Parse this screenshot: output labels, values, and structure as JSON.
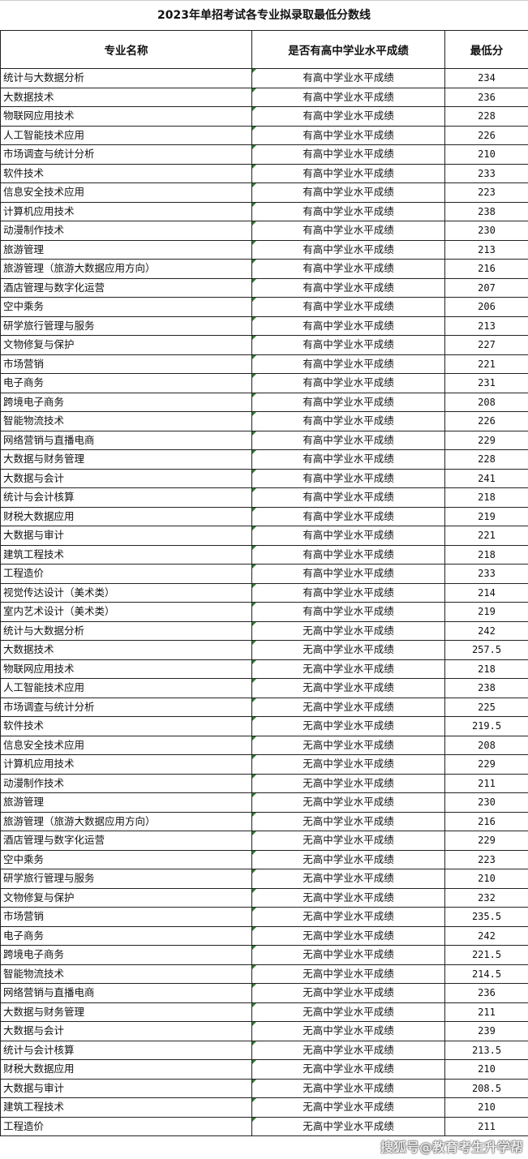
{
  "title": "2023年单招考试各专业拟录取最低分数线",
  "headers": [
    "专业名称",
    "是否有高中学业水平成绩",
    "最低分"
  ],
  "watermark": "搜狐号@教育考生升学帮",
  "rows": [
    [
      "统计与大数据分析",
      "有高中学业水平成绩",
      "234"
    ],
    [
      "大数据技术",
      "有高中学业水平成绩",
      "236"
    ],
    [
      "物联网应用技术",
      "有高中学业水平成绩",
      "228"
    ],
    [
      "人工智能技术应用",
      "有高中学业水平成绩",
      "226"
    ],
    [
      "市场调查与统计分析",
      "有高中学业水平成绩",
      "210"
    ],
    [
      "软件技术",
      "有高中学业水平成绩",
      "233"
    ],
    [
      "信息安全技术应用",
      "有高中学业水平成绩",
      "223"
    ],
    [
      "计算机应用技术",
      "有高中学业水平成绩",
      "238"
    ],
    [
      "动漫制作技术",
      "有高中学业水平成绩",
      "230"
    ],
    [
      "旅游管理",
      "有高中学业水平成绩",
      "213"
    ],
    [
      "旅游管理（旅游大数据应用方向）",
      "有高中学业水平成绩",
      "216"
    ],
    [
      "酒店管理与数字化运营",
      "有高中学业水平成绩",
      "207"
    ],
    [
      "空中乘务",
      "有高中学业水平成绩",
      "206"
    ],
    [
      "研学旅行管理与服务",
      "有高中学业水平成绩",
      "213"
    ],
    [
      "文物修复与保护",
      "有高中学业水平成绩",
      "227"
    ],
    [
      "市场营销",
      "有高中学业水平成绩",
      "221"
    ],
    [
      "电子商务",
      "有高中学业水平成绩",
      "231"
    ],
    [
      "跨境电子商务",
      "有高中学业水平成绩",
      "208"
    ],
    [
      "智能物流技术",
      "有高中学业水平成绩",
      "226"
    ],
    [
      "网络营销与直播电商",
      "有高中学业水平成绩",
      "229"
    ],
    [
      "大数据与财务管理",
      "有高中学业水平成绩",
      "228"
    ],
    [
      "大数据与会计",
      "有高中学业水平成绩",
      "241"
    ],
    [
      "统计与会计核算",
      "有高中学业水平成绩",
      "218"
    ],
    [
      "财税大数据应用",
      "有高中学业水平成绩",
      "219"
    ],
    [
      "大数据与审计",
      "有高中学业水平成绩",
      "221"
    ],
    [
      "建筑工程技术",
      "有高中学业水平成绩",
      "218"
    ],
    [
      "工程造价",
      "有高中学业水平成绩",
      "233"
    ],
    [
      "视觉传达设计（美术类）",
      "有高中学业水平成绩",
      "214"
    ],
    [
      "室内艺术设计（美术类）",
      "有高中学业水平成绩",
      "219"
    ],
    [
      "统计与大数据分析",
      "无高中学业水平成绩",
      "242"
    ],
    [
      "大数据技术",
      "无高中学业水平成绩",
      "257.5"
    ],
    [
      "物联网应用技术",
      "无高中学业水平成绩",
      "218"
    ],
    [
      "人工智能技术应用",
      "无高中学业水平成绩",
      "238"
    ],
    [
      "市场调查与统计分析",
      "无高中学业水平成绩",
      "225"
    ],
    [
      "软件技术",
      "无高中学业水平成绩",
      "219.5"
    ],
    [
      "信息安全技术应用",
      "无高中学业水平成绩",
      "208"
    ],
    [
      "计算机应用技术",
      "无高中学业水平成绩",
      "229"
    ],
    [
      "动漫制作技术",
      "无高中学业水平成绩",
      "211"
    ],
    [
      "旅游管理",
      "无高中学业水平成绩",
      "230"
    ],
    [
      "旅游管理（旅游大数据应用方向）",
      "无高中学业水平成绩",
      "216"
    ],
    [
      "酒店管理与数字化运营",
      "无高中学业水平成绩",
      "229"
    ],
    [
      "空中乘务",
      "无高中学业水平成绩",
      "223"
    ],
    [
      "研学旅行管理与服务",
      "无高中学业水平成绩",
      "210"
    ],
    [
      "文物修复与保护",
      "无高中学业水平成绩",
      "232"
    ],
    [
      "市场营销",
      "无高中学业水平成绩",
      "235.5"
    ],
    [
      "电子商务",
      "无高中学业水平成绩",
      "242"
    ],
    [
      "跨境电子商务",
      "无高中学业水平成绩",
      "221.5"
    ],
    [
      "智能物流技术",
      "无高中学业水平成绩",
      "214.5"
    ],
    [
      "网络营销与直播电商",
      "无高中学业水平成绩",
      "236"
    ],
    [
      "大数据与财务管理",
      "无高中学业水平成绩",
      "211"
    ],
    [
      "大数据与会计",
      "无高中学业水平成绩",
      "239"
    ],
    [
      "统计与会计核算",
      "无高中学业水平成绩",
      "213.5"
    ],
    [
      "财税大数据应用",
      "无高中学业水平成绩",
      "210"
    ],
    [
      "大数据与审计",
      "无高中学业水平成绩",
      "208.5"
    ],
    [
      "建筑工程技术",
      "无高中学业水平成绩",
      "210"
    ],
    [
      "工程造价",
      "无高中学业水平成绩",
      "211"
    ]
  ]
}
